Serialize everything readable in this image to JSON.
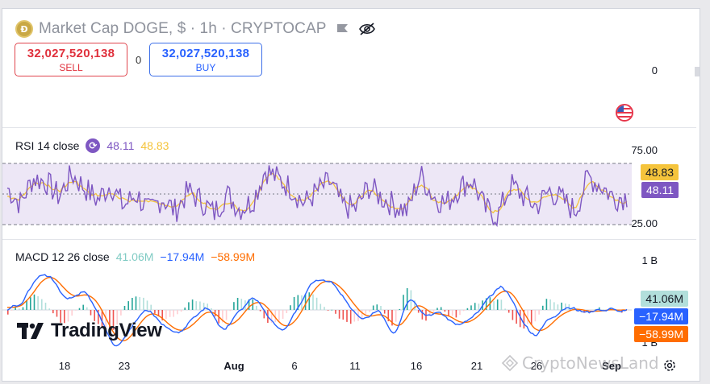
{
  "header": {
    "coin_glyph": "Ð",
    "title": "Market Cap DOGE, $ · 1h · CRYPTOCAP"
  },
  "trade": {
    "sell_price": "32,027,520,138",
    "sell_label": "SELL",
    "spread": "0",
    "buy_price": "32,027,520,138",
    "buy_label": "BUY"
  },
  "main_axis": {
    "zero_label": "0"
  },
  "rsi": {
    "name": "RSI 14 close",
    "value_rsi": "48.11",
    "value_ma": "48.83",
    "axis": [
      "75.00",
      "25.00"
    ],
    "colors": {
      "rsi": "#7e57c2",
      "ma": "#f5c43c",
      "band": "#ede7f6"
    }
  },
  "macd": {
    "name": "MACD 12 26 close",
    "value_hist": "41.06M",
    "value_macd": "−17.94M",
    "value_signal": "−58.99M",
    "axis": [
      "1 B",
      "1 B"
    ],
    "tags": [
      "41.06M",
      "−17.94M",
      "−58.99M"
    ],
    "colors": {
      "hist": "#b2dfdb",
      "macd": "#2962ff",
      "signal": "#ff6d00"
    }
  },
  "x_axis": [
    "18",
    "23",
    "Aug",
    "6",
    "11",
    "16",
    "21",
    "26",
    "Sep"
  ],
  "logo": {
    "text": "TradingView"
  },
  "watermark": {
    "text": "CryptoNewsLand"
  },
  "chart_data": {
    "type": "line",
    "series": [
      {
        "name": "RSI 14 close",
        "values": [
          55,
          42,
          63,
          60,
          48,
          66,
          55,
          45,
          58,
          40,
          50,
          35,
          47,
          36,
          52,
          45,
          34,
          50,
          38,
          44,
          70,
          62,
          55,
          42,
          52,
          60,
          40,
          38,
          56,
          47,
          41,
          36,
          66,
          48,
          42,
          55,
          62,
          38,
          32,
          58,
          48,
          40,
          53,
          45,
          36,
          64,
          57,
          47,
          48
        ]
      },
      {
        "name": "MACD 12 26 close",
        "values": [
          0.02,
          0.05,
          0.42,
          0.35,
          0.1,
          0.28,
          -0.1,
          -0.45,
          -0.2,
          0.05,
          -0.15,
          -0.3,
          -0.1,
          0.05,
          -0.25,
          0.0,
          0.18,
          -0.1,
          -0.25,
          0.12,
          0.35,
          0.32,
          0.05,
          -0.15,
          0.02,
          -0.28,
          0.2,
          -0.1,
          0.0,
          -0.2,
          -0.12,
          0.12,
          0.3,
          -0.05,
          -0.3,
          -0.1,
          0.05,
          -0.02,
          0.0,
          0.0,
          -0.04
        ]
      }
    ],
    "ylim_rsi": [
      25,
      75
    ]
  }
}
